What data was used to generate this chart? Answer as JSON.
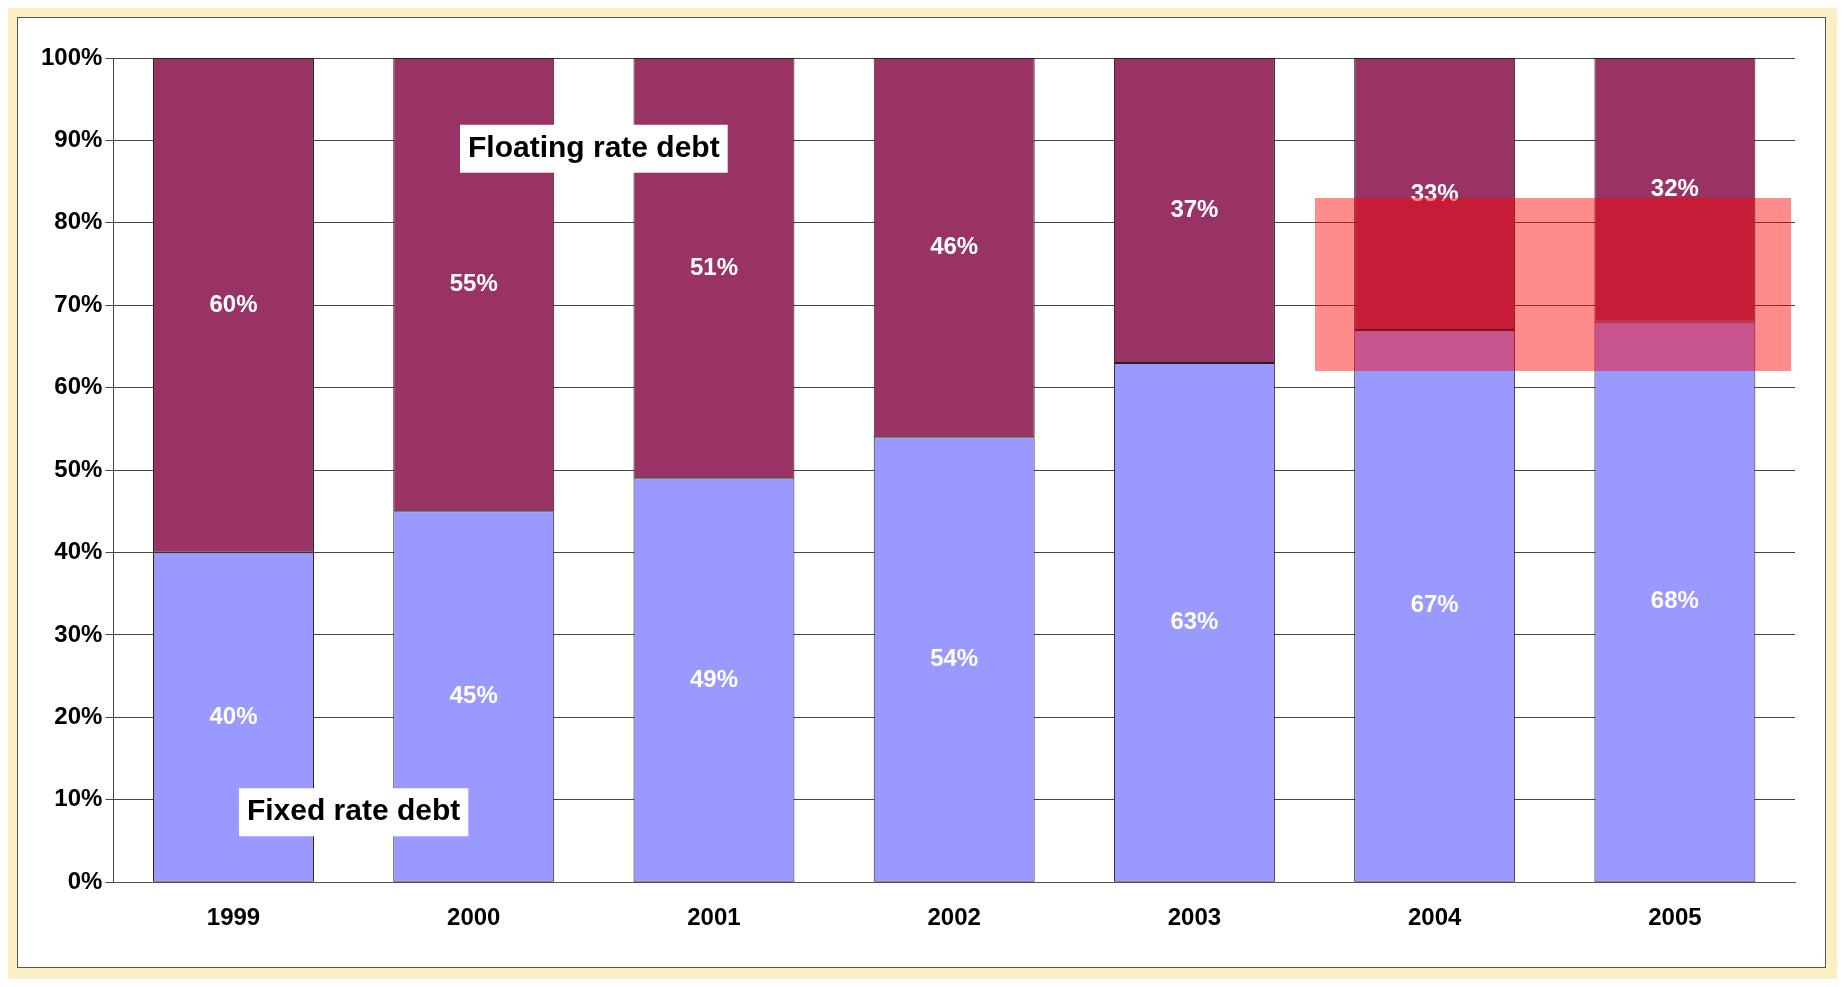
{
  "chart_data": {
    "type": "bar",
    "stacked": true,
    "categories": [
      "1999",
      "2000",
      "2001",
      "2002",
      "2003",
      "2004",
      "2005"
    ],
    "series": [
      {
        "name": "Fixed rate debt",
        "color": "#9999ff",
        "values": [
          40,
          45,
          49,
          54,
          63,
          67,
          68
        ],
        "value_labels": [
          "40%",
          "45%",
          "49%",
          "54%",
          "63%",
          "67%",
          "68%"
        ]
      },
      {
        "name": "Floating rate debt",
        "color": "#993366",
        "values": [
          60,
          55,
          51,
          46,
          37,
          33,
          32
        ],
        "value_labels": [
          "60%",
          "55%",
          "51%",
          "46%",
          "37%",
          "33%",
          "32%"
        ]
      }
    ],
    "ylim": [
      0,
      100
    ],
    "yticks": [
      {
        "value": 0,
        "label": "0%"
      },
      {
        "value": 10,
        "label": "10%"
      },
      {
        "value": 20,
        "label": "20%"
      },
      {
        "value": 30,
        "label": "30%"
      },
      {
        "value": 40,
        "label": "40%"
      },
      {
        "value": 50,
        "label": "50%"
      },
      {
        "value": 60,
        "label": "60%"
      },
      {
        "value": 70,
        "label": "70%"
      },
      {
        "value": 80,
        "label": "80%"
      },
      {
        "value": 90,
        "label": "90%"
      },
      {
        "value": 100,
        "label": "100%"
      }
    ],
    "grid": "y",
    "legend": false
  }
}
